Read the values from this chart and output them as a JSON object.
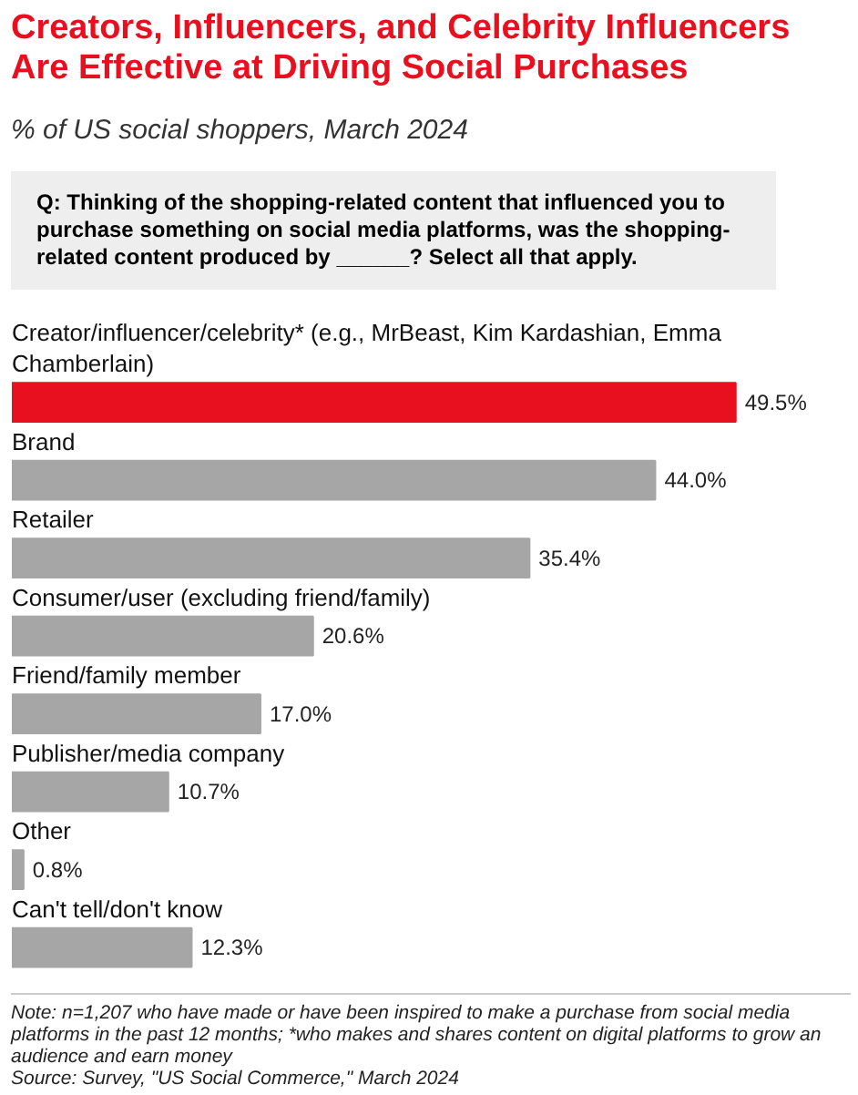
{
  "chart_data": {
    "type": "bar",
    "orientation": "horizontal",
    "data_labels": true,
    "title": "Creators, Influencers, and Celebrity Influencers Are Effective at Driving Social Purchases",
    "subtitle": "% of US social shoppers, March 2024",
    "categories": [
      "Creator/influencer/celebrity* (e.g., MrBeast, Kim Kardashian, Emma Chamberlain)",
      "Brand",
      "Retailer",
      "Consumer/user (excluding friend/family)",
      "Friend/family member",
      "Publisher/media company",
      "Other",
      "Can't tell/don't know"
    ],
    "values": [
      49.5,
      44.0,
      35.4,
      20.6,
      17.0,
      10.7,
      0.8,
      12.3
    ],
    "value_labels": [
      "49.5%",
      "44.0%",
      "35.4%",
      "20.6%",
      "17.0%",
      "10.7%",
      "0.8%",
      "12.3%"
    ],
    "colors": [
      "#e8101f",
      "#a6a6a6",
      "#a6a6a6",
      "#a6a6a6",
      "#a6a6a6",
      "#a6a6a6",
      "#a6a6a6",
      "#a6a6a6"
    ],
    "annotations": [
      "Q: Thinking of the shopping-related content that influenced you to purchase something on social media platforms, was the shopping-related content produced by ______? Select all that apply.",
      "Note: n=1,207 who have made or have been inspired to make a purchase from social media platforms in the past 12 months; *who makes and shares content on digital platforms to grow an audience and earn money",
      "Source: Survey, \"US Social Commerce,\" March 2024"
    ]
  }
}
